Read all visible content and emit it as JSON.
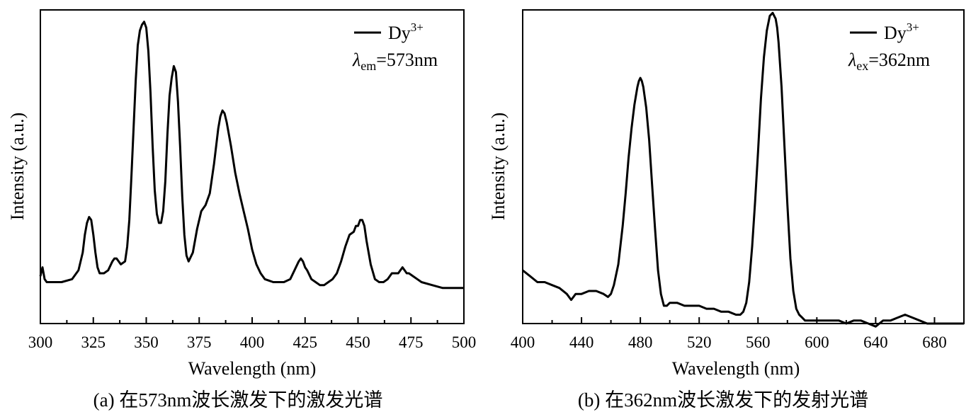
{
  "chart_data": [
    {
      "type": "line",
      "xlabel": "Wavelength (nm)",
      "ylabel": "Intensity (a.u.)",
      "caption": "(a) 在573nm波长激发下的激发光谱",
      "xlim": [
        300,
        500
      ],
      "ylim": [
        0,
        1.06
      ],
      "xticks": [
        "300",
        "325",
        "350",
        "375",
        "400",
        "425",
        "450",
        "475",
        "500"
      ],
      "legend": {
        "position": "top-right",
        "series_name": "Dy",
        "series_sup": "3+",
        "note_symbol": "λ",
        "note_sub": "em",
        "note_value": "=573nm"
      },
      "series": [
        {
          "name": "Dy3+",
          "x": [
            300,
            301,
            302,
            303,
            304,
            306,
            310,
            315,
            318,
            320,
            321,
            322,
            323,
            324,
            325,
            326,
            327,
            328,
            329,
            330,
            332,
            334,
            335,
            336,
            337,
            338,
            340,
            341,
            342,
            343,
            344,
            345,
            346,
            347,
            348,
            349,
            350,
            351,
            352,
            353,
            354,
            355,
            356,
            357,
            358,
            359,
            360,
            361,
            362,
            363,
            364,
            365,
            366,
            367,
            368,
            369,
            370,
            372,
            374,
            376,
            378,
            380,
            382,
            384,
            385,
            386,
            387,
            388,
            390,
            392,
            394,
            396,
            398,
            400,
            402,
            404,
            406,
            410,
            415,
            418,
            420,
            422,
            423,
            424,
            425,
            426,
            428,
            430,
            432,
            434,
            436,
            438,
            440,
            442,
            444,
            446,
            448,
            449,
            450,
            451,
            452,
            453,
            454,
            456,
            458,
            460,
            462,
            464,
            466,
            467,
            468,
            469,
            470,
            471,
            472,
            473,
            474,
            476,
            478,
            480,
            485,
            490,
            495,
            500
          ],
          "y": [
            0.16,
            0.19,
            0.15,
            0.14,
            0.14,
            0.14,
            0.14,
            0.15,
            0.18,
            0.24,
            0.3,
            0.34,
            0.36,
            0.35,
            0.3,
            0.24,
            0.19,
            0.17,
            0.17,
            0.17,
            0.18,
            0.21,
            0.22,
            0.22,
            0.21,
            0.2,
            0.21,
            0.26,
            0.35,
            0.5,
            0.66,
            0.82,
            0.94,
            0.99,
            1.01,
            1.02,
            1.0,
            0.92,
            0.78,
            0.6,
            0.45,
            0.37,
            0.34,
            0.34,
            0.38,
            0.48,
            0.64,
            0.77,
            0.83,
            0.87,
            0.85,
            0.75,
            0.6,
            0.43,
            0.3,
            0.23,
            0.21,
            0.24,
            0.32,
            0.38,
            0.4,
            0.44,
            0.54,
            0.66,
            0.7,
            0.72,
            0.71,
            0.68,
            0.6,
            0.51,
            0.44,
            0.38,
            0.32,
            0.25,
            0.2,
            0.17,
            0.15,
            0.14,
            0.14,
            0.15,
            0.18,
            0.21,
            0.22,
            0.21,
            0.19,
            0.18,
            0.15,
            0.14,
            0.13,
            0.13,
            0.14,
            0.15,
            0.17,
            0.21,
            0.26,
            0.3,
            0.31,
            0.33,
            0.33,
            0.35,
            0.35,
            0.33,
            0.28,
            0.2,
            0.15,
            0.14,
            0.14,
            0.15,
            0.17,
            0.17,
            0.17,
            0.17,
            0.18,
            0.19,
            0.18,
            0.17,
            0.17,
            0.16,
            0.15,
            0.14,
            0.13,
            0.12,
            0.12,
            0.12
          ]
        }
      ]
    },
    {
      "type": "line",
      "xlabel": "Wavelength (nm)",
      "ylabel": "Intensity (a.u.)",
      "caption": "(b) 在362nm波长激发下的发射光谱",
      "xlim": [
        400,
        700
      ],
      "ylim": [
        0,
        1.06
      ],
      "xticks": [
        "400",
        "440",
        "480",
        "520",
        "560",
        "600",
        "640",
        "680"
      ],
      "legend": {
        "position": "top-right",
        "series_name": "Dy",
        "series_sup": "3+",
        "note_symbol": "λ",
        "note_sub": "ex",
        "note_value": "=362nm"
      },
      "series": [
        {
          "name": "Dy3+",
          "x": [
            400,
            405,
            410,
            415,
            420,
            425,
            430,
            433,
            436,
            440,
            445,
            450,
            455,
            458,
            460,
            462,
            465,
            468,
            470,
            472,
            474,
            476,
            478,
            479,
            480,
            481,
            482,
            484,
            486,
            488,
            490,
            492,
            494,
            496,
            498,
            500,
            505,
            510,
            515,
            520,
            525,
            530,
            535,
            540,
            545,
            548,
            550,
            552,
            554,
            556,
            558,
            560,
            562,
            564,
            566,
            568,
            570,
            571,
            572,
            573,
            574,
            576,
            578,
            580,
            582,
            584,
            586,
            588,
            590,
            592,
            595,
            600,
            610,
            615,
            620,
            625,
            630,
            635,
            640,
            645,
            650,
            655,
            660,
            665,
            670,
            675,
            680,
            690,
            700
          ],
          "y": [
            0.18,
            0.16,
            0.14,
            0.14,
            0.13,
            0.12,
            0.1,
            0.08,
            0.1,
            0.1,
            0.11,
            0.11,
            0.1,
            0.09,
            0.1,
            0.13,
            0.2,
            0.33,
            0.44,
            0.56,
            0.66,
            0.74,
            0.8,
            0.82,
            0.83,
            0.82,
            0.8,
            0.73,
            0.62,
            0.47,
            0.32,
            0.18,
            0.1,
            0.06,
            0.06,
            0.07,
            0.07,
            0.06,
            0.06,
            0.06,
            0.05,
            0.05,
            0.04,
            0.04,
            0.03,
            0.03,
            0.04,
            0.07,
            0.14,
            0.26,
            0.41,
            0.58,
            0.76,
            0.9,
            0.99,
            1.04,
            1.05,
            1.04,
            1.03,
            1.0,
            0.95,
            0.8,
            0.6,
            0.4,
            0.22,
            0.11,
            0.05,
            0.03,
            0.02,
            0.01,
            0.01,
            0.01,
            0.01,
            0.01,
            0.0,
            0.01,
            0.01,
            0.0,
            -0.01,
            0.01,
            0.01,
            0.02,
            0.03,
            0.02,
            0.01,
            0.0,
            0.0,
            0.0,
            0.0
          ]
        }
      ]
    }
  ]
}
